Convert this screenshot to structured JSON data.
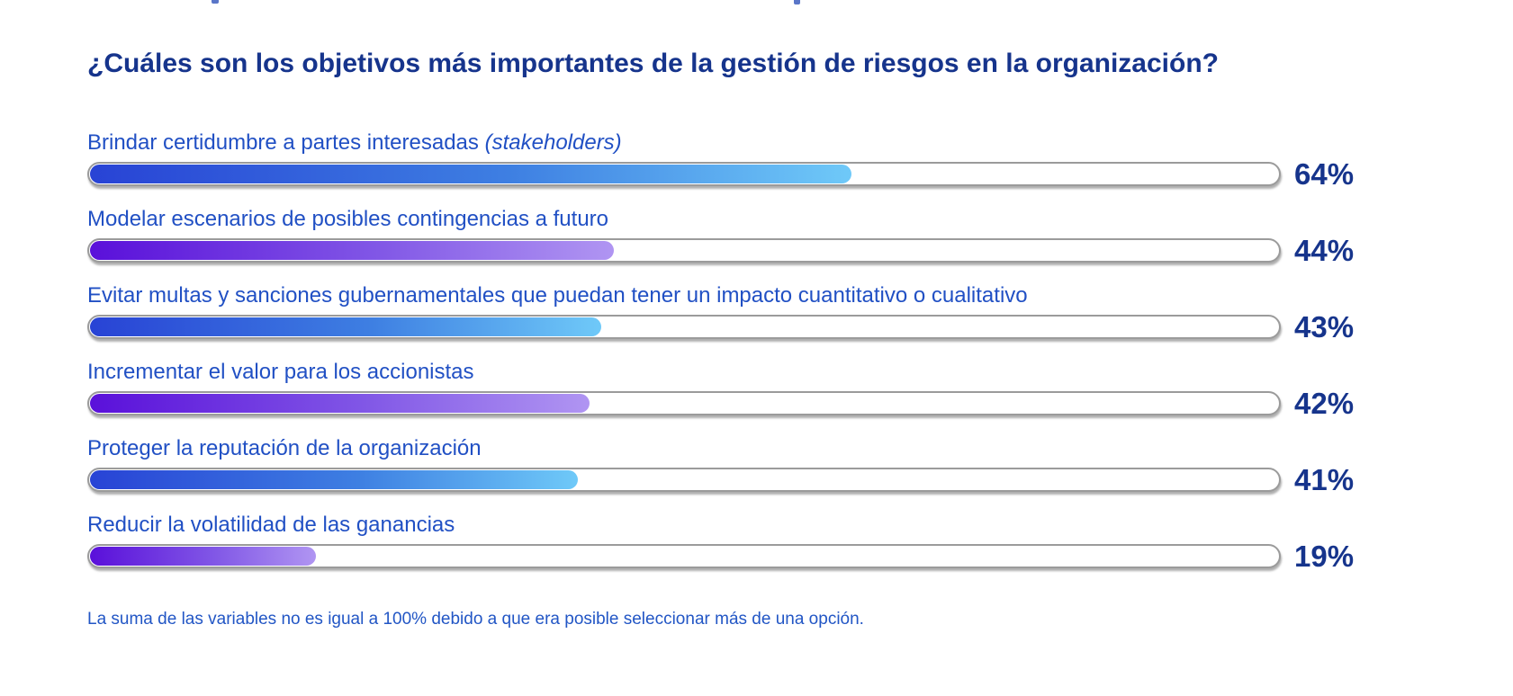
{
  "title": "¿Cuáles son los objetivos más importantes de la gestión de riesgos en la organización?",
  "footnote": "La suma de las variables no es igual a 100% debido a que era posible seleccionar más de una opción.",
  "chart_data": {
    "type": "bar",
    "orientation": "horizontal",
    "title": "¿Cuáles son los objetivos más importantes de la gestión de riesgos en la organización?",
    "categories": [
      "Brindar certidumbre a partes interesadas (stakeholders)",
      "Modelar escenarios de posibles contingencias a futuro",
      "Evitar multas y sanciones gubernamentales que puedan tener un impacto cuantitativo o cualitativo",
      "Incrementar el valor para los accionistas",
      "Proteger la reputación de la organización",
      "Reducir la volatilidad de las ganancias"
    ],
    "values": [
      64,
      44,
      43,
      42,
      41,
      19
    ],
    "value_labels": [
      "64%",
      "44%",
      "43%",
      "42%",
      "41%",
      "19%"
    ],
    "xlim": [
      0,
      100
    ],
    "grid": false,
    "legend": false,
    "footnote": "La suma de las variables no es igual a 100% debido a que era posible seleccionar más de una opción."
  },
  "rows": [
    {
      "label": "Brindar certidumbre a partes interesadas",
      "label_italic": "(stakeholders)",
      "value_label": "64%",
      "scheme": "blue"
    },
    {
      "label": "Modelar escenarios de posibles contingencias a futuro",
      "label_italic": "",
      "value_label": "44%",
      "scheme": "purple"
    },
    {
      "label": "Evitar multas y sanciones gubernamentales que puedan tener un impacto cuantitativo o cualitativo",
      "label_italic": "",
      "value_label": "43%",
      "scheme": "blue"
    },
    {
      "label": "Incrementar el valor para los accionistas",
      "label_italic": "",
      "value_label": "42%",
      "scheme": "purple"
    },
    {
      "label": "Proteger la reputación de la organización",
      "label_italic": "",
      "value_label": "41%",
      "scheme": "blue"
    },
    {
      "label": "Reducir la volatilidad de las ganancias",
      "label_italic": "",
      "value_label": "19%",
      "scheme": "purple"
    }
  ],
  "colors": {
    "navy": "#16348C",
    "label_blue": "#2150C4",
    "footnote_blue": "#2256C5",
    "track_border": "#9B9B9B",
    "blue_start": "#2843D5",
    "blue_mid": "#3E7FE2",
    "blue_end": "#6FC9F8",
    "purple_start": "#5A10DA",
    "purple_mid": "#8157E6",
    "purple_end": "#B095F2"
  }
}
